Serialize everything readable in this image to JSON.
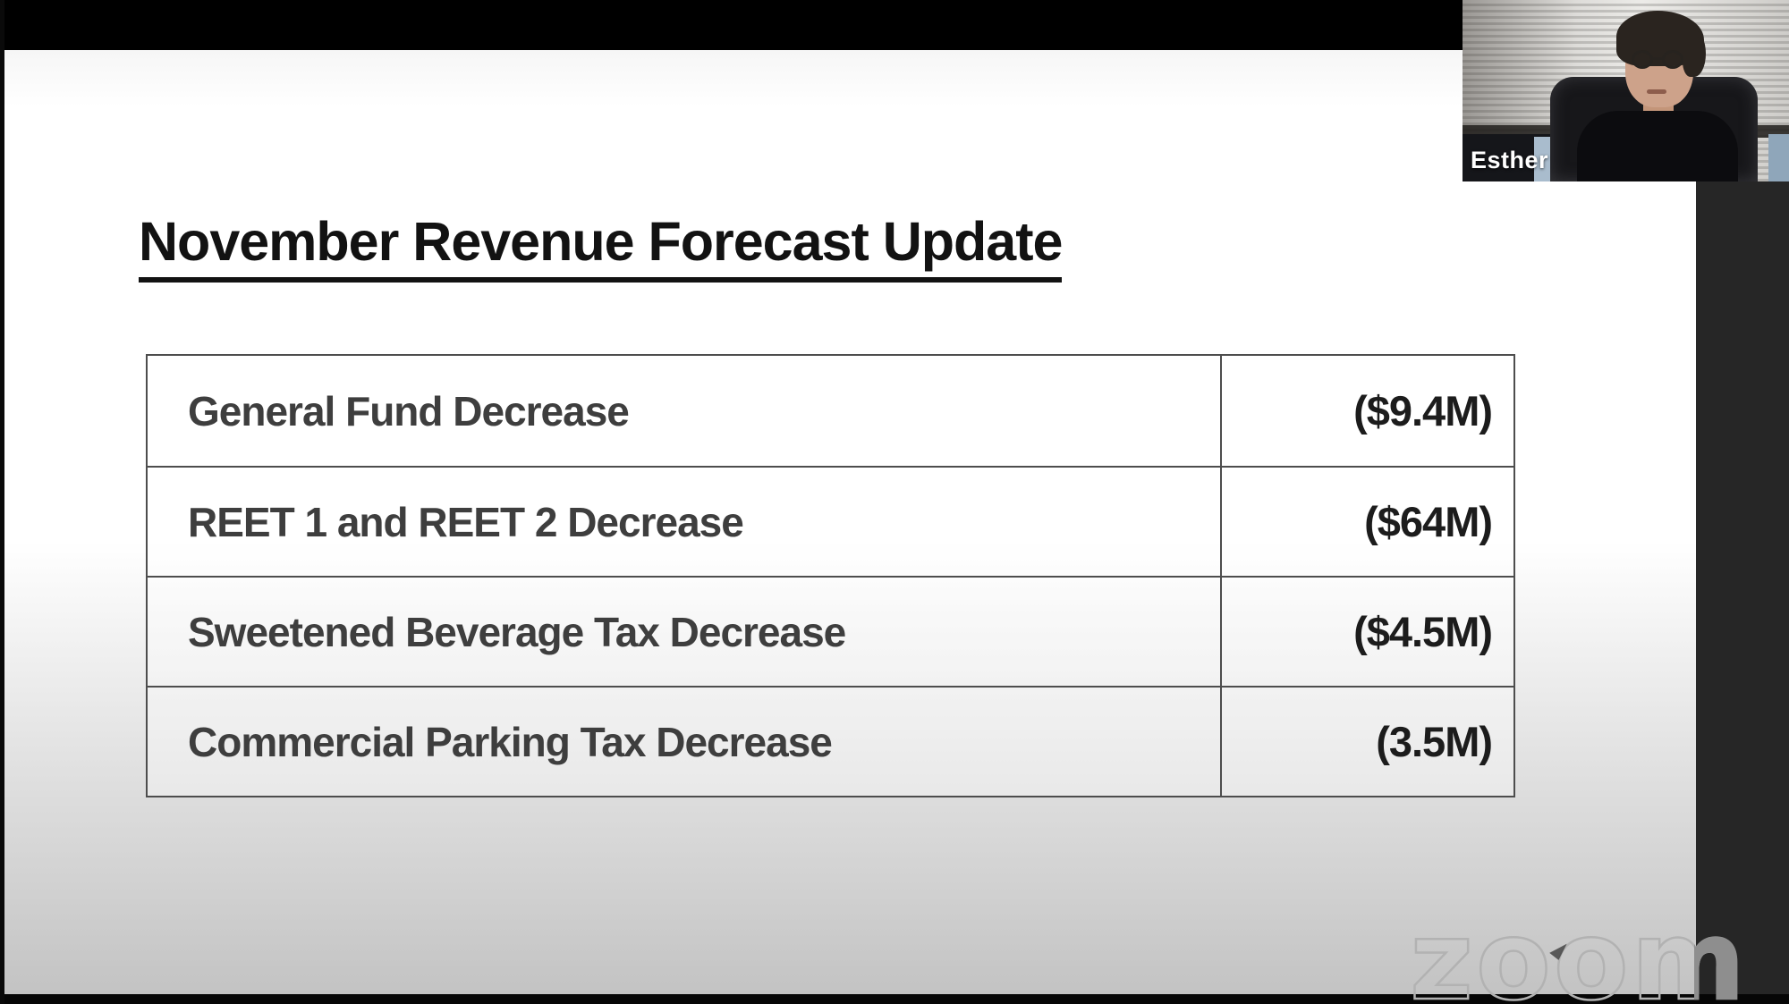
{
  "webcam": {
    "participant_name": "Esther"
  },
  "slide": {
    "title": "November Revenue Forecast Update",
    "table": {
      "rows": [
        {
          "label": "General Fund Decrease",
          "value": "($9.4M)"
        },
        {
          "label": "REET 1 and REET 2 Decrease",
          "value": "($64M)"
        },
        {
          "label": "Sweetened Beverage Tax Decrease",
          "value": "($4.5M)"
        },
        {
          "label": "Commercial Parking Tax Decrease",
          "value": "(3.5M)"
        }
      ]
    }
  },
  "watermark": {
    "text": "zoom"
  },
  "colors": {
    "top_bar": "#000000",
    "side_strip": "#262626",
    "slide_bottom": "#c3c3c3",
    "table_border": "#4d4d4d",
    "label_text": "#3e3e3e",
    "value_text": "#1c1c1c",
    "watermark_outline": "#b2b2b2"
  }
}
